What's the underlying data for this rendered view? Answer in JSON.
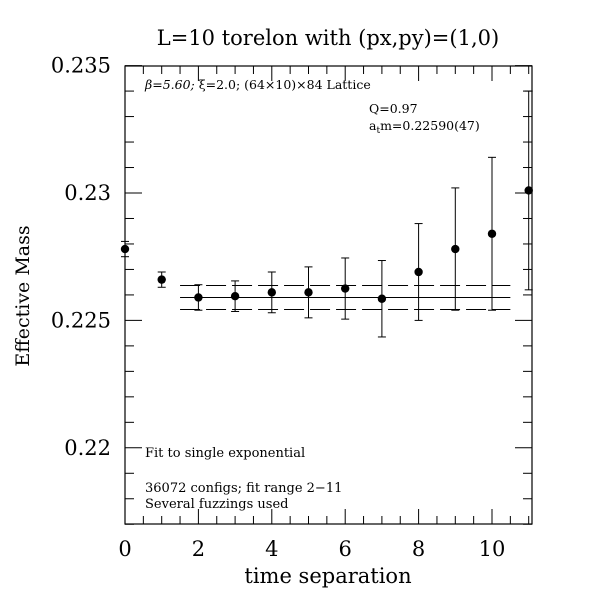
{
  "chart_data": {
    "type": "scatter",
    "title": "L=10 torelon with (px,py)=(1,0)",
    "xlabel": "time separation",
    "ylabel": "Effective Mass",
    "xlim": [
      0,
      11.1
    ],
    "ylim": [
      0.217,
      0.235
    ],
    "x_ticks": [
      0,
      2,
      4,
      6,
      8,
      10
    ],
    "x_tick_labels": [
      "0",
      "2",
      "4",
      "6",
      "8",
      "10"
    ],
    "y_ticks": [
      0.22,
      0.225,
      0.23,
      0.235
    ],
    "y_tick_labels": [
      "0.22",
      "0.225",
      "0.23",
      "0.235"
    ],
    "grid": false,
    "series": [
      {
        "points": [
          {
            "x": 0,
            "y": 0.2278,
            "err": 0.0003
          },
          {
            "x": 1,
            "y": 0.2266,
            "err": 0.0003
          },
          {
            "x": 2,
            "y": 0.2259,
            "err": 0.0005
          },
          {
            "x": 3,
            "y": 0.22595,
            "err": 0.0006
          },
          {
            "x": 4,
            "y": 0.2261,
            "err": 0.0008
          },
          {
            "x": 5,
            "y": 0.2261,
            "err": 0.001
          },
          {
            "x": 6,
            "y": 0.22625,
            "err": 0.0012
          },
          {
            "x": 7,
            "y": 0.22585,
            "err": 0.0015
          },
          {
            "x": 8,
            "y": 0.2269,
            "err": 0.0019
          },
          {
            "x": 9,
            "y": 0.2278,
            "err": 0.0024
          },
          {
            "x": 10,
            "y": 0.2284,
            "err": 0.003
          },
          {
            "x": 11,
            "y": 0.2301,
            "err": 0.0039
          }
        ]
      }
    ],
    "fit": {
      "x_start": 1.5,
      "x_end": 10.5,
      "value": 0.2259,
      "error": 0.00047
    },
    "annotations": {
      "lattice_beta": "β=5.60; ",
      "lattice_xi": "ξ=2.0; (64×10)×84 Lattice",
      "q_value": "Q=0.97",
      "mass_prefix": "a",
      "mass_sub": "t",
      "mass_value": "m=0.22590(47)",
      "fit_note": "Fit to single exponential",
      "configs_note": "36072 configs; fit range 2−11",
      "fuzzing_note": "Several fuzzings used"
    }
  }
}
